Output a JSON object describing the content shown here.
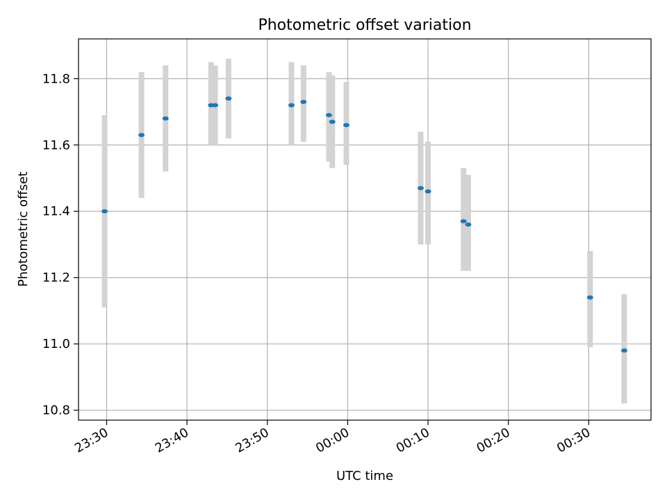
{
  "chart_data": {
    "type": "scatter",
    "title": "Photometric offset variation",
    "xlabel": "UTC time",
    "ylabel": "Photometric offset",
    "x_ticks": [
      "23:30",
      "23:40",
      "23:50",
      "00:00",
      "00:10",
      "00:20",
      "00:30"
    ],
    "y_ticks": [
      "10.8",
      "11.0",
      "11.2",
      "11.4",
      "11.6",
      "11.8"
    ],
    "xlim": [
      "23:26:30",
      "00:37:45"
    ],
    "ylim": [
      10.77,
      11.92
    ],
    "grid": true,
    "marker_color": "#1f77b4",
    "errorbar_color": "#d3d3d3",
    "series": [
      {
        "points": [
          {
            "x": "23:29:45",
            "y": 11.4,
            "err_low": 11.11,
            "err_high": 11.69
          },
          {
            "x": "23:34:20",
            "y": 11.63,
            "err_low": 11.44,
            "err_high": 11.82
          },
          {
            "x": "23:37:20",
            "y": 11.68,
            "err_low": 11.52,
            "err_high": 11.84
          },
          {
            "x": "23:43:00",
            "y": 11.72,
            "err_low": 11.6,
            "err_high": 11.85
          },
          {
            "x": "23:43:30",
            "y": 11.72,
            "err_low": 11.6,
            "err_high": 11.84
          },
          {
            "x": "23:45:10",
            "y": 11.74,
            "err_low": 11.62,
            "err_high": 11.86
          },
          {
            "x": "23:53:00",
            "y": 11.72,
            "err_low": 11.6,
            "err_high": 11.85
          },
          {
            "x": "23:54:30",
            "y": 11.73,
            "err_low": 11.61,
            "err_high": 11.84
          },
          {
            "x": "23:57:40",
            "y": 11.69,
            "err_low": 11.55,
            "err_high": 11.82
          },
          {
            "x": "23:58:05",
            "y": 11.67,
            "err_low": 11.53,
            "err_high": 11.81
          },
          {
            "x": "23:59:50",
            "y": 11.66,
            "err_low": 11.54,
            "err_high": 11.79
          },
          {
            "x": "00:09:05",
            "y": 11.47,
            "err_low": 11.3,
            "err_high": 11.64
          },
          {
            "x": "00:10:00",
            "y": 11.46,
            "err_low": 11.3,
            "err_high": 11.61
          },
          {
            "x": "00:14:25",
            "y": 11.37,
            "err_low": 11.22,
            "err_high": 11.53
          },
          {
            "x": "00:15:00",
            "y": 11.36,
            "err_low": 11.22,
            "err_high": 11.51
          },
          {
            "x": "00:30:10",
            "y": 11.14,
            "err_low": 10.99,
            "err_high": 11.28
          },
          {
            "x": "00:34:25",
            "y": 10.98,
            "err_low": 10.82,
            "err_high": 11.15
          }
        ]
      }
    ]
  }
}
